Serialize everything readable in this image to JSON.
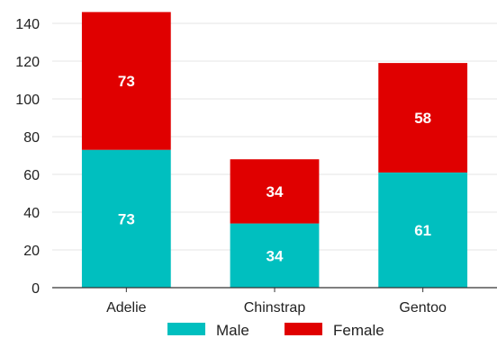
{
  "chart_data": {
    "type": "bar",
    "stacked": true,
    "categories": [
      "Adelie",
      "Chinstrap",
      "Gentoo"
    ],
    "series": [
      {
        "name": "Male",
        "color": "#00bfbf",
        "values": [
          73,
          34,
          61
        ]
      },
      {
        "name": "Female",
        "color": "#e00000",
        "values": [
          73,
          34,
          58
        ]
      }
    ],
    "ylim": [
      0,
      150
    ],
    "yticks": [
      0,
      20,
      40,
      60,
      80,
      100,
      120,
      140
    ],
    "grid": true,
    "legend_position": "bottom"
  }
}
